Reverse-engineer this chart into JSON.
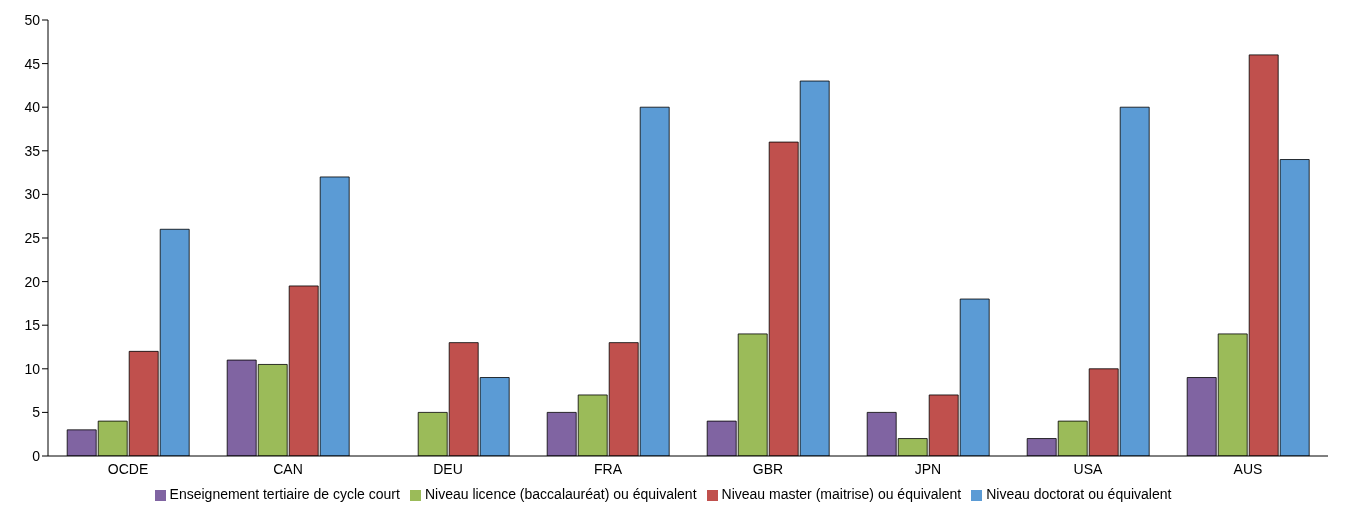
{
  "chart_data": {
    "type": "bar",
    "categories": [
      "OCDE",
      "CAN",
      "DEU",
      "FRA",
      "GBR",
      "JPN",
      "USA",
      "AUS"
    ],
    "series": [
      {
        "name": "Enseignement tertiaire de cycle court",
        "color": "#8064a2",
        "values": [
          3,
          11,
          null,
          5,
          4,
          5,
          2,
          9
        ]
      },
      {
        "name": "Niveau licence (baccalauréat) ou équivalent",
        "color": "#9bbb59",
        "values": [
          4,
          10.5,
          5,
          7,
          14,
          2,
          4,
          14
        ]
      },
      {
        "name": "Niveau master (maitrise) ou équivalent",
        "color": "#c0504d",
        "values": [
          12,
          19.5,
          13,
          13,
          36,
          7,
          10,
          46
        ]
      },
      {
        "name": "Niveau doctorat ou équivalent",
        "color": "#5b9bd5",
        "values": [
          26,
          32,
          9,
          40,
          43,
          18,
          40,
          34
        ]
      }
    ],
    "ylim": [
      0,
      50
    ],
    "yticks": [
      0,
      5,
      10,
      15,
      20,
      25,
      30,
      35,
      40,
      45,
      50
    ],
    "grid": false,
    "legend": "bottom"
  }
}
